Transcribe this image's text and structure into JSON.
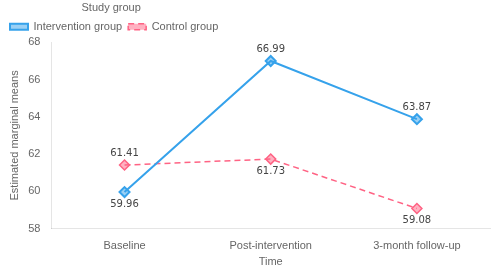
{
  "chart_data": {
    "type": "line",
    "categories": [
      "Baseline",
      "Post-intervention",
      "3-month follow-up"
    ],
    "series": [
      {
        "name": "Intervention group",
        "values": [
          59.96,
          66.99,
          63.87
        ],
        "line_style": "solid",
        "marker": "diamond"
      },
      {
        "name": "Control group",
        "values": [
          61.41,
          61.73,
          59.08
        ],
        "line_style": "dashed",
        "marker": "diamond"
      }
    ],
    "xlabel": "Time",
    "ylabel": "Estimated marginal means",
    "ylim": [
      58,
      68
    ],
    "yticks": [
      58,
      60,
      62,
      64,
      66,
      68
    ],
    "legend": "top",
    "legend_title": "Study group",
    "data_labels": true,
    "grid": false
  }
}
